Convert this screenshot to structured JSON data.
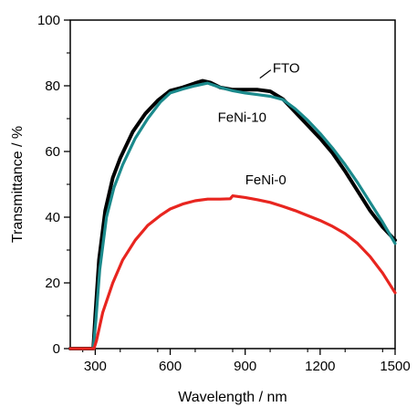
{
  "chart_data": {
    "type": "line",
    "title": "",
    "xlabel": "Wavelength / nm",
    "ylabel": "Transmittance / %",
    "xlim": [
      200,
      1500
    ],
    "ylim": [
      0,
      100
    ],
    "xticks": [
      300,
      600,
      900,
      1200,
      1500
    ],
    "yticks": [
      0,
      20,
      40,
      60,
      80,
      100
    ],
    "x_minor_step": 150,
    "y_minor_step": 10,
    "grid": false,
    "legend": "none",
    "series": [
      {
        "name": "FTO",
        "color": "#000000",
        "points": [
          [
            200,
            0
          ],
          [
            280,
            0
          ],
          [
            292,
            0
          ],
          [
            300,
            10
          ],
          [
            315,
            27
          ],
          [
            340,
            42
          ],
          [
            370,
            52
          ],
          [
            400,
            58
          ],
          [
            450,
            66
          ],
          [
            500,
            71.5
          ],
          [
            550,
            75.5
          ],
          [
            600,
            78.5
          ],
          [
            650,
            79.5
          ],
          [
            700,
            80.8
          ],
          [
            730,
            81.5
          ],
          [
            760,
            81
          ],
          [
            800,
            79.5
          ],
          [
            850,
            78.8
          ],
          [
            900,
            78.8
          ],
          [
            950,
            78.8
          ],
          [
            1000,
            78.3
          ],
          [
            1050,
            76
          ],
          [
            1100,
            72
          ],
          [
            1150,
            68
          ],
          [
            1200,
            64
          ],
          [
            1250,
            59.5
          ],
          [
            1300,
            54
          ],
          [
            1350,
            48
          ],
          [
            1400,
            42
          ],
          [
            1450,
            37
          ],
          [
            1500,
            33
          ]
        ]
      },
      {
        "name": "FeNi-10",
        "color": "#1b8a8c",
        "points": [
          [
            200,
            0
          ],
          [
            282,
            0
          ],
          [
            292,
            0
          ],
          [
            302,
            8
          ],
          [
            318,
            24
          ],
          [
            345,
            40
          ],
          [
            375,
            49
          ],
          [
            410,
            56
          ],
          [
            460,
            64
          ],
          [
            510,
            70
          ],
          [
            560,
            75
          ],
          [
            600,
            77.8
          ],
          [
            650,
            79
          ],
          [
            700,
            80
          ],
          [
            750,
            80.8
          ],
          [
            800,
            79.5
          ],
          [
            850,
            78.5
          ],
          [
            900,
            77.8
          ],
          [
            950,
            77.3
          ],
          [
            1000,
            76.8
          ],
          [
            1050,
            75.8
          ],
          [
            1100,
            73
          ],
          [
            1150,
            69.5
          ],
          [
            1200,
            65.5
          ],
          [
            1250,
            61
          ],
          [
            1300,
            56
          ],
          [
            1350,
            50.5
          ],
          [
            1400,
            44.5
          ],
          [
            1450,
            38.5
          ],
          [
            1500,
            32
          ]
        ]
      },
      {
        "name": "FeNi-0",
        "color": "#e8251f",
        "points": [
          [
            200,
            0
          ],
          [
            295,
            0
          ],
          [
            305,
            2.5
          ],
          [
            330,
            11
          ],
          [
            370,
            20
          ],
          [
            410,
            27
          ],
          [
            460,
            33
          ],
          [
            510,
            37.5
          ],
          [
            560,
            40.5
          ],
          [
            600,
            42.5
          ],
          [
            650,
            44
          ],
          [
            700,
            45
          ],
          [
            750,
            45.5
          ],
          [
            800,
            45.5
          ],
          [
            840,
            45.6
          ],
          [
            850,
            46.5
          ],
          [
            870,
            46.3
          ],
          [
            900,
            46
          ],
          [
            950,
            45.3
          ],
          [
            1000,
            44.5
          ],
          [
            1050,
            43.3
          ],
          [
            1100,
            42
          ],
          [
            1150,
            40.5
          ],
          [
            1200,
            39
          ],
          [
            1250,
            37.2
          ],
          [
            1300,
            35
          ],
          [
            1350,
            32
          ],
          [
            1400,
            28
          ],
          [
            1450,
            23
          ],
          [
            1500,
            17
          ]
        ]
      }
    ],
    "annotations": [
      {
        "text": "FTO",
        "x": 1010,
        "y": 84
      },
      {
        "text": "FeNi-10",
        "x": 790,
        "y": 69
      },
      {
        "text": "FeNi-0",
        "x": 900,
        "y": 50
      }
    ]
  }
}
